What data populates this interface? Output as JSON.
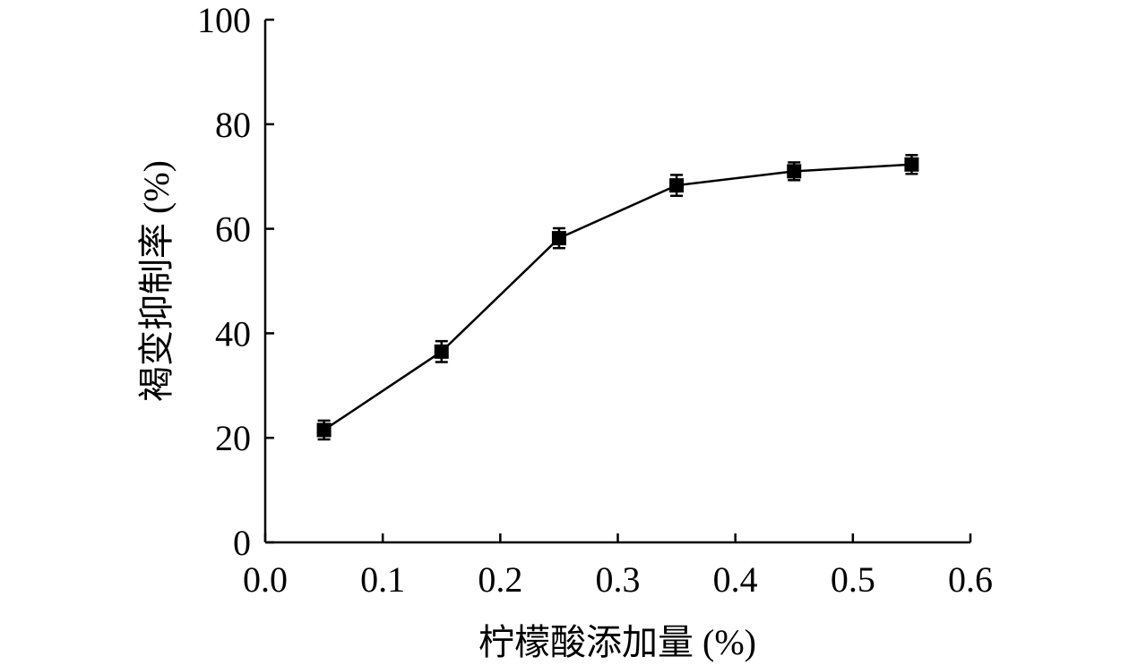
{
  "chart_data": {
    "type": "line",
    "title": "",
    "xlabel": "柠檬酸添加量 (%)",
    "ylabel": "褐变抑制率 (%)",
    "xlim": [
      0.0,
      0.6
    ],
    "ylim": [
      0,
      100
    ],
    "x_ticks": [
      0.0,
      0.1,
      0.2,
      0.3,
      0.4,
      0.5,
      0.6
    ],
    "x_tick_labels": [
      "0.0",
      "0.1",
      "0.2",
      "0.3",
      "0.4",
      "0.5",
      "0.6"
    ],
    "y_ticks": [
      0,
      20,
      40,
      60,
      80,
      100
    ],
    "y_tick_labels": [
      "0",
      "20",
      "40",
      "60",
      "80",
      "100"
    ],
    "grid": false,
    "legend": "none",
    "marker": "square",
    "line_color": "#000000",
    "series": [
      {
        "x": [
          0.05,
          0.15,
          0.25,
          0.35,
          0.45,
          0.55
        ],
        "values": [
          21.5,
          36.5,
          58.2,
          68.3,
          71.0,
          72.3
        ],
        "error": [
          1.8,
          2.0,
          1.9,
          2.0,
          1.7,
          1.8
        ]
      }
    ]
  }
}
